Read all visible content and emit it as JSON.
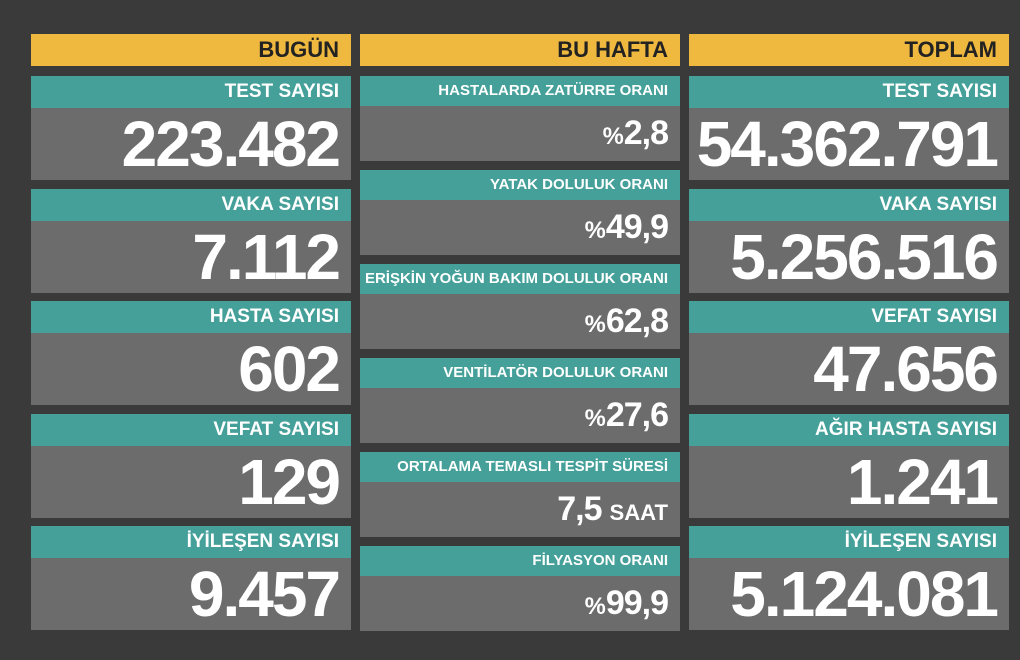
{
  "columns": [
    {
      "title": "BUGÜN",
      "cards": [
        {
          "label": "TEST SAYISI",
          "value": "223.482"
        },
        {
          "label": "VAKA SAYISI",
          "value": "7.112"
        },
        {
          "label": "HASTA SAYISI",
          "value": "602"
        },
        {
          "label": "VEFAT SAYISI",
          "value": "129"
        },
        {
          "label": "İYİLEŞEN SAYISI",
          "value": "9.457"
        }
      ]
    },
    {
      "title": "BU HAFTA",
      "cards": [
        {
          "label": "HASTALARDA ZATÜRRE ORANI",
          "prefix": "%",
          "value": "2,8"
        },
        {
          "label": "YATAK DOLULUK ORANI",
          "prefix": "%",
          "value": "49,9"
        },
        {
          "label": "ERİŞKİN YOĞUN BAKIM DOLULUK ORANI",
          "prefix": "%",
          "value": "62,8"
        },
        {
          "label": "VENTİLATÖR DOLULUK ORANI",
          "prefix": "%",
          "value": "27,6"
        },
        {
          "label": "ORTALAMA TEMASLI TESPİT SÜRESİ",
          "value": "7,5",
          "suffix": "SAAT"
        },
        {
          "label": "FİLYASYON ORANI",
          "prefix": "%",
          "value": "99,9"
        }
      ]
    },
    {
      "title": "TOPLAM",
      "cards": [
        {
          "label": "TEST SAYISI",
          "value": "54.362.791"
        },
        {
          "label": "VAKA SAYISI",
          "value": "5.256.516"
        },
        {
          "label": "VEFAT SAYISI",
          "value": "47.656"
        },
        {
          "label": "AĞIR HASTA SAYISI",
          "value": "1.241"
        },
        {
          "label": "İYİLEŞEN SAYISI",
          "value": "5.124.081"
        }
      ]
    }
  ]
}
